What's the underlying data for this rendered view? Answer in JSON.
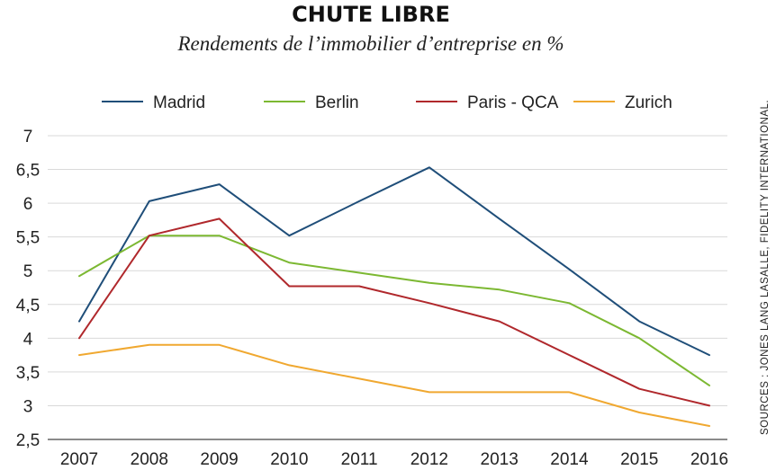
{
  "chart_data": {
    "type": "line",
    "title": "CHUTE LIBRE",
    "subtitle": "Rendements de l’immobilier d’entreprise en %",
    "source": "SOURCES : JONES LANG LASALLE, FIDELITY INTERNATIONAL.",
    "categories": [
      "2007",
      "2008",
      "2009",
      "2010",
      "2011",
      "2012",
      "2013",
      "2014",
      "2015",
      "2016"
    ],
    "ylim": [
      2.5,
      7
    ],
    "yticks": [
      2.5,
      3,
      3.5,
      4,
      4.5,
      5,
      5.5,
      6,
      6.5,
      7
    ],
    "ytick_labels": [
      "2,5",
      "3",
      "3,5",
      "4",
      "4,5",
      "5",
      "5,5",
      "6",
      "6,5",
      "7"
    ],
    "grid": true,
    "legend_position": "top",
    "series": [
      {
        "name": "Madrid",
        "color": "#1f4e79",
        "values": [
          4.25,
          6.03,
          6.28,
          5.52,
          6.03,
          6.53,
          5.77,
          5.02,
          4.25,
          3.75
        ]
      },
      {
        "name": "Berlin",
        "color": "#7cb832",
        "values": [
          4.92,
          5.52,
          5.52,
          5.12,
          4.97,
          4.82,
          4.72,
          4.52,
          4.0,
          3.3
        ]
      },
      {
        "name": "Paris - QCA",
        "color": "#b0282c",
        "values": [
          4.0,
          5.52,
          5.77,
          4.77,
          4.77,
          4.52,
          4.25,
          3.75,
          3.25,
          3.0
        ]
      },
      {
        "name": "Zurich",
        "color": "#f0a830",
        "values": [
          3.75,
          3.9,
          3.9,
          3.6,
          3.4,
          3.2,
          3.2,
          3.2,
          2.9,
          2.7
        ]
      }
    ]
  }
}
